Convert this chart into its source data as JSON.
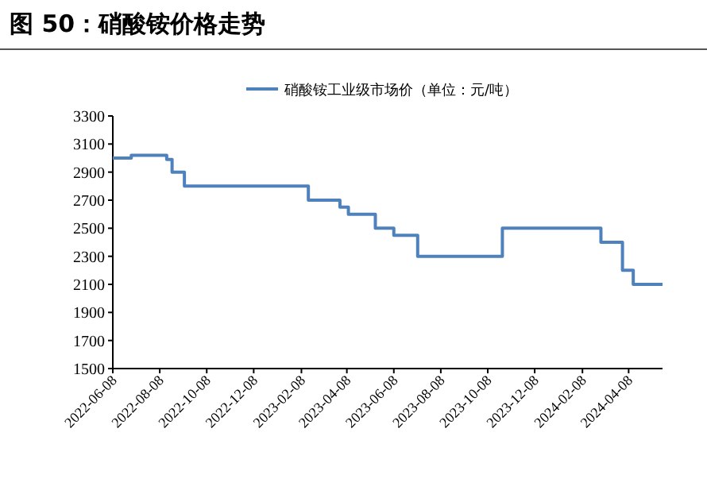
{
  "chart_data": {
    "type": "step",
    "title": "图 50：硝酸铵价格走势",
    "x": [
      "2022-06-08",
      "2022-07-02",
      "2022-08-17",
      "2022-08-24",
      "2022-09-09",
      "2023-02-17",
      "2023-03-30",
      "2023-04-10",
      "2023-05-15",
      "2023-06-08",
      "2023-07-09",
      "2023-10-27",
      "2024-03-03",
      "2024-03-31",
      "2024-04-14",
      "2024-05-22"
    ],
    "series": [
      {
        "name": "硝酸铵工业级市场价（单位：元/吨）",
        "color": "#4f81bd",
        "values": [
          3000,
          3020,
          2990,
          2900,
          2800,
          2700,
          2650,
          2600,
          2500,
          2450,
          2300,
          2500,
          2400,
          2200,
          2100,
          2100
        ]
      }
    ],
    "xlim": [
      "2022-06-08",
      "2024-05-22"
    ],
    "xticks": [
      "2022-06-08",
      "2022-08-08",
      "2022-10-08",
      "2022-12-08",
      "2023-02-08",
      "2023-04-08",
      "2023-06-08",
      "2023-08-08",
      "2023-10-08",
      "2023-12-08",
      "2024-02-08",
      "2024-04-08"
    ],
    "ylim": [
      1500,
      3300
    ],
    "yticks": [
      1500,
      1700,
      1900,
      2100,
      2300,
      2500,
      2700,
      2900,
      3100,
      3300
    ],
    "legend": "top"
  }
}
